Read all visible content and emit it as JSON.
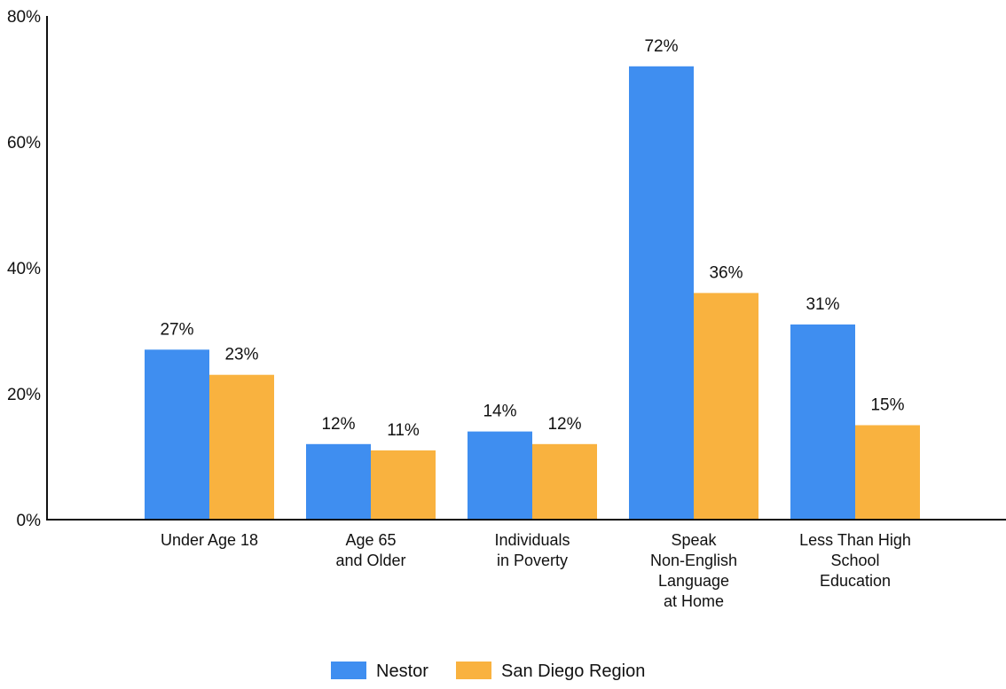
{
  "chart_data": {
    "type": "bar",
    "title": "",
    "xlabel": "",
    "ylabel": "",
    "ylim": [
      0,
      80
    ],
    "y_ticks": [
      {
        "value": 0,
        "label": "0%"
      },
      {
        "value": 20,
        "label": "20%"
      },
      {
        "value": 40,
        "label": "40%"
      },
      {
        "value": 60,
        "label": "60%"
      },
      {
        "value": 80,
        "label": "80%"
      }
    ],
    "categories": [
      {
        "label_lines": [
          "Under Age 18"
        ]
      },
      {
        "label_lines": [
          "Age 65",
          "and Older"
        ]
      },
      {
        "label_lines": [
          "Individuals",
          "in Poverty"
        ]
      },
      {
        "label_lines": [
          "Speak",
          "Non-English",
          "Language",
          "at Home"
        ]
      },
      {
        "label_lines": [
          "Less Than High",
          "School",
          "Education"
        ]
      }
    ],
    "series": [
      {
        "name": "Nestor",
        "color": "#3f8ef0",
        "values": [
          27,
          12,
          14,
          72,
          31
        ],
        "labels": [
          "27%",
          "12%",
          "14%",
          "72%",
          "31%"
        ]
      },
      {
        "name": "San Diego Region",
        "color": "#f9b23f",
        "values": [
          23,
          11,
          12,
          36,
          15
        ],
        "labels": [
          "23%",
          "11%",
          "12%",
          "36%",
          "15%"
        ]
      }
    ],
    "grid": false,
    "legend_position": "bottom-center"
  }
}
